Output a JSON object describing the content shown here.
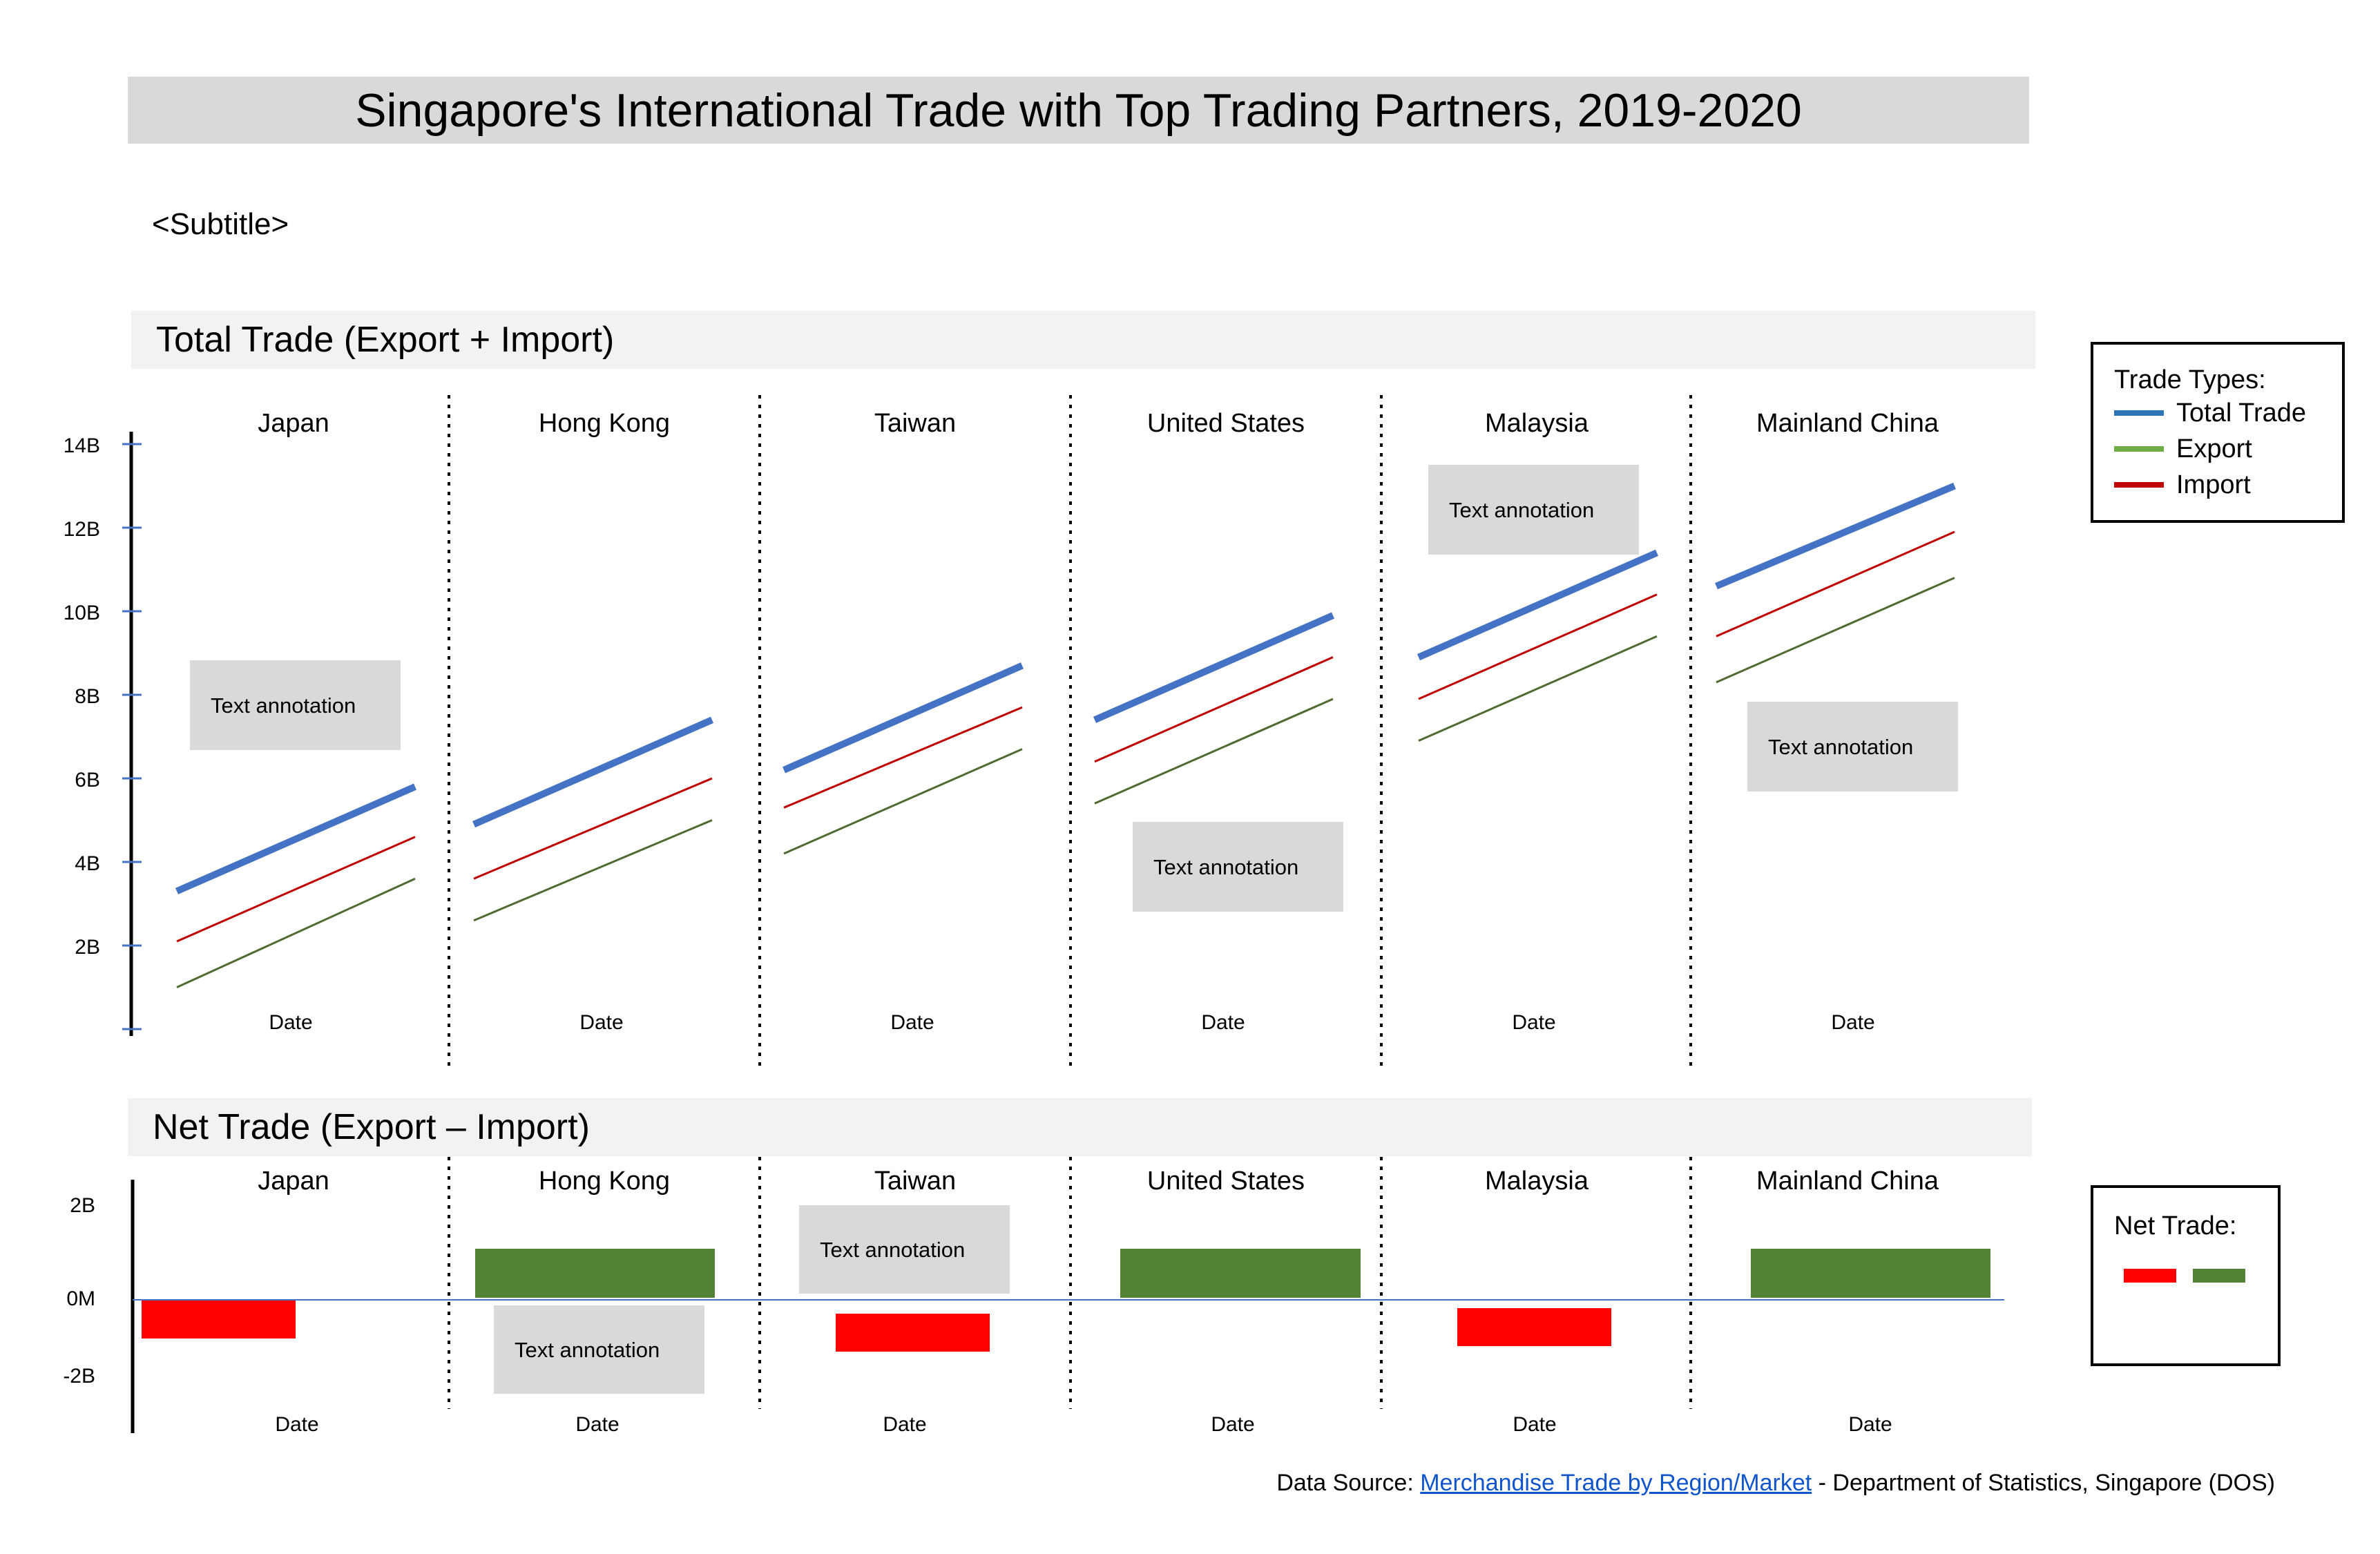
{
  "title": "Singapore's International Trade with Top Trading Partners, 2019-2020",
  "subtitle": "<Subtitle>",
  "source": {
    "prefix": "Data Source: ",
    "link_text": "Merchandise Trade by Region/Market",
    "suffix": " - Department of Statistics, Singapore (DOS)"
  },
  "annotation_text": "Text annotation",
  "colors": {
    "total_trade": "#4472c4",
    "export": "#4f6b30",
    "import": "#c00000",
    "positive": "#548235",
    "negative": "#ff0000",
    "legend_total": "#2e75b6",
    "legend_export": "#70ad47",
    "legend_import": "#c00000"
  },
  "legend_trade": {
    "title": "Trade Types:",
    "items": [
      "Total Trade",
      "Export",
      "Import"
    ]
  },
  "legend_net": {
    "title": "Net Trade:"
  },
  "chart_data": [
    {
      "type": "line",
      "title": "Total Trade (Export + Import)",
      "y_tick_labels": [
        "2B",
        "4B",
        "6B",
        "8B",
        "10B",
        "12B",
        "14B"
      ],
      "ylim": [
        0,
        14.5
      ],
      "xlabel": "Date",
      "categories": [
        "Japan",
        "Hong Kong",
        "Taiwan",
        "United States",
        "Malaysia",
        "Mainland China"
      ],
      "series": [
        {
          "name": "Total Trade",
          "values": [
            [
              3.3,
              5.8
            ],
            [
              4.9,
              7.4
            ],
            [
              6.2,
              8.7
            ],
            [
              7.4,
              9.9
            ],
            [
              8.9,
              11.4
            ],
            [
              10.6,
              13.0
            ]
          ]
        },
        {
          "name": "Import",
          "values": [
            [
              2.1,
              4.6
            ],
            [
              3.6,
              6.0
            ],
            [
              5.3,
              7.7
            ],
            [
              6.4,
              8.9
            ],
            [
              7.9,
              10.4
            ],
            [
              9.4,
              11.9
            ]
          ]
        },
        {
          "name": "Export",
          "values": [
            [
              1.0,
              3.6
            ],
            [
              2.6,
              5.0
            ],
            [
              4.2,
              6.7
            ],
            [
              5.4,
              7.9
            ],
            [
              6.9,
              9.4
            ],
            [
              8.3,
              10.8
            ]
          ]
        }
      ],
      "annotations": [
        "Japan",
        "United States",
        "Malaysia",
        "Mainland China"
      ]
    },
    {
      "type": "bar",
      "title": "Net Trade (Export – Import)",
      "y_tick_labels": [
        "2B",
        "0M",
        "-2B"
      ],
      "ylim": [
        -3.5,
        3
      ],
      "xlabel": "Date",
      "categories": [
        "Japan",
        "Hong Kong",
        "Taiwan",
        "United States",
        "Malaysia",
        "Mainland China"
      ],
      "values": [
        -1.0,
        1.2,
        -1.0,
        1.2,
        -1.0,
        1.2
      ],
      "annotations": [
        "Hong Kong",
        "Taiwan"
      ]
    }
  ]
}
